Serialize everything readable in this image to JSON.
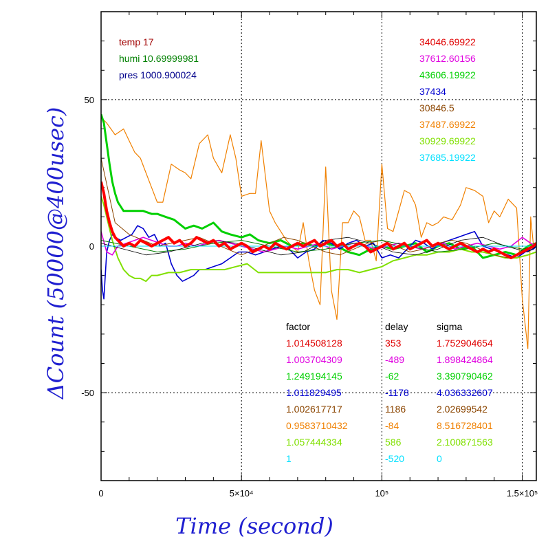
{
  "chart_data": {
    "type": "line",
    "xlabel": "Time (second)",
    "ylabel": "ΔCount (50000@400usec)",
    "xlim": [
      0,
      155000
    ],
    "ylim": [
      -80,
      80
    ],
    "x_ticks": [
      {
        "value": 0,
        "label": "0"
      },
      {
        "value": 50000,
        "label": "5×10⁴"
      },
      {
        "value": 100000,
        "label": "10⁵"
      },
      {
        "value": 150000,
        "label": "1.5×10⁵"
      }
    ],
    "y_ticks": [
      {
        "value": 50,
        "label": "50"
      },
      {
        "value": 0,
        "label": "0"
      },
      {
        "value": -50,
        "label": "-50"
      }
    ],
    "grid": "dotted",
    "env": [
      {
        "label": "temp 17",
        "color": "#a00000"
      },
      {
        "label": "humi 10.69999981",
        "color": "#008000"
      },
      {
        "label": "pres 1000.900024",
        "color": "#00008b"
      }
    ],
    "means": [
      {
        "value": "34046.69922",
        "color": "#e00000"
      },
      {
        "value": "37612.60156",
        "color": "#e000e0"
      },
      {
        "value": "43606.19922",
        "color": "#00d000"
      },
      {
        "value": "37434",
        "color": "#0000d0"
      },
      {
        "value": "30846.5",
        "color": "#8b4500"
      },
      {
        "value": "37487.69922",
        "color": "#f08000"
      },
      {
        "value": "30929.69922",
        "color": "#80e000"
      },
      {
        "value": "37685.19922",
        "color": "#00e0ff"
      }
    ],
    "table_headers": [
      "factor",
      "delay",
      "sigma"
    ],
    "table": [
      {
        "factor": "1.014508128",
        "delay": "353",
        "sigma": "1.752904654",
        "color": "#e00000"
      },
      {
        "factor": "1.003704309",
        "delay": "-489",
        "sigma": "1.898424864",
        "color": "#e000e0"
      },
      {
        "factor": "1.249194145",
        "delay": "-62",
        "sigma": "3.390790462",
        "color": "#00d000"
      },
      {
        "factor": "1.011829495",
        "delay": "-1178",
        "sigma": "4.036332607",
        "color": "#0000d0"
      },
      {
        "factor": "1.002617717",
        "delay": "1186",
        "sigma": "2.02699542",
        "color": "#8b4500"
      },
      {
        "factor": "0.9583710432",
        "delay": "-84",
        "sigma": "8.516728401",
        "color": "#f08000"
      },
      {
        "factor": "1.057444334",
        "delay": "586",
        "sigma": "2.100871563",
        "color": "#80e000"
      },
      {
        "factor": "1",
        "delay": "-520",
        "sigma": "0",
        "color": "#00e0ff"
      }
    ],
    "series": [
      {
        "color": "#f08000",
        "width": 1.2,
        "x": [
          0,
          2000,
          5000,
          8000,
          10000,
          12000,
          14000,
          16000,
          18000,
          20000,
          22000,
          25000,
          28000,
          30000,
          32000,
          35000,
          38000,
          40000,
          43000,
          46000,
          48000,
          50000,
          53000,
          55000,
          57000,
          60000,
          62000,
          64000,
          66000,
          68000,
          70000,
          72000,
          74000,
          76000,
          78000,
          80000,
          82000,
          84000,
          86000,
          88000,
          90000,
          92000,
          94000,
          96000,
          98000,
          100000,
          102000,
          104000,
          106000,
          108000,
          110000,
          112000,
          114000,
          116000,
          118000,
          120000,
          122000,
          125000,
          128000,
          130000,
          133000,
          136000,
          138000,
          140000,
          142000,
          145000,
          148000,
          150000,
          152000,
          153000,
          154000,
          155000
        ],
        "y": [
          44,
          42,
          38,
          40,
          36,
          32,
          30,
          25,
          20,
          15,
          15,
          28,
          26,
          25,
          23,
          35,
          38,
          30,
          25,
          38,
          30,
          17,
          18,
          18,
          36,
          12,
          8,
          5,
          2,
          0,
          -2,
          8,
          -5,
          -15,
          -20,
          27,
          -15,
          -25,
          8,
          8,
          12,
          10,
          2,
          2,
          -5,
          28,
          6,
          5,
          12,
          19,
          18,
          14,
          3,
          8,
          7,
          8,
          10,
          9,
          14,
          20,
          19,
          17,
          8,
          12,
          10,
          16,
          13,
          -18,
          -35,
          10,
          0,
          0
        ]
      },
      {
        "color": "#00d000",
        "width": 3,
        "x": [
          0,
          1000,
          2000,
          3000,
          4000,
          5000,
          6000,
          8000,
          10000,
          12000,
          15000,
          18000,
          20000,
          23000,
          26000,
          30000,
          33000,
          36000,
          40000,
          43000,
          46000,
          50000,
          53000,
          56000,
          60000,
          64000,
          68000,
          72000,
          76000,
          80000,
          84000,
          88000,
          92000,
          96000,
          100000,
          104000,
          108000,
          112000,
          116000,
          120000,
          124000,
          128000,
          132000,
          136000,
          140000,
          144000,
          148000,
          152000,
          155000
        ],
        "y": [
          45,
          42,
          35,
          28,
          22,
          18,
          15,
          12,
          12,
          12,
          12,
          11,
          11,
          10,
          9,
          6,
          7,
          6,
          8,
          5,
          4,
          3,
          4,
          2,
          1,
          2,
          0,
          1,
          0,
          1,
          0,
          -2,
          -3,
          -1,
          0,
          -1,
          0,
          1,
          -2,
          0,
          1,
          -1,
          0,
          -4,
          -3,
          -2,
          -3,
          0,
          1
        ]
      },
      {
        "color": "#0000d0",
        "width": 1.6,
        "x": [
          0,
          500,
          1000,
          1500,
          2000,
          3000,
          4000,
          5000,
          7000,
          9000,
          11000,
          13000,
          15000,
          17000,
          19000,
          21000,
          23000,
          25000,
          27000,
          29000,
          31000,
          33000,
          35000,
          37000,
          40000,
          43000,
          46000,
          49000,
          52000,
          55000,
          58000,
          61000,
          64000,
          67000,
          70000,
          73000,
          76000,
          79000,
          82000,
          85000,
          88000,
          91000,
          94000,
          97000,
          100000,
          103000,
          106000,
          109000,
          112000,
          115000,
          118000,
          121000,
          124000,
          127000,
          130000,
          133000,
          136000,
          139000,
          142000,
          145000,
          148000,
          151000,
          154000,
          155000
        ],
        "y": [
          -8,
          -15,
          -18,
          -10,
          -2,
          2,
          4,
          3,
          2,
          3,
          4,
          7,
          6,
          3,
          4,
          0,
          1,
          -6,
          -10,
          -12,
          -11,
          -10,
          -8,
          -8,
          -7,
          -6,
          -4,
          -2,
          -2,
          -3,
          -2,
          -1,
          0,
          -1,
          -4,
          -2,
          -1,
          2,
          1,
          -1,
          1,
          2,
          0,
          1,
          -4,
          -3,
          -4,
          -1,
          2,
          1,
          -1,
          1,
          2,
          3,
          4,
          5,
          0,
          -1,
          -2,
          -3,
          -4,
          -2,
          -1,
          0
        ]
      },
      {
        "color": "#80e000",
        "width": 2,
        "x": [
          0,
          1000,
          2000,
          4000,
          6000,
          8000,
          10000,
          12000,
          14000,
          16000,
          18000,
          20000,
          24000,
          28000,
          32000,
          36000,
          40000,
          44000,
          48000,
          52000,
          56000,
          60000,
          64000,
          68000,
          72000,
          76000,
          80000,
          84000,
          88000,
          92000,
          96000,
          100000,
          104000,
          108000,
          112000,
          116000,
          120000,
          124000,
          128000,
          132000,
          136000,
          140000,
          144000,
          148000,
          152000,
          155000
        ],
        "y": [
          17,
          14,
          10,
          2,
          -4,
          -8,
          -10,
          -11,
          -11,
          -12,
          -10,
          -10,
          -9,
          -9,
          -8,
          -8,
          -8,
          -8,
          -7,
          -6,
          -9,
          -9,
          -9,
          -9,
          -9,
          -9,
          -9,
          -8,
          -8,
          -9,
          -8,
          -7,
          -5,
          -4,
          -3,
          -3,
          -2,
          -2,
          -1,
          -2,
          -2,
          -3,
          -4,
          -4,
          -3,
          -2
        ]
      },
      {
        "color": "#e000e0",
        "width": 1.6,
        "x": [
          0,
          2000,
          4000,
          6000,
          9000,
          12000,
          15000,
          18000,
          21000,
          24000,
          27000,
          30000,
          34000,
          38000,
          42000,
          46000,
          50000,
          54000,
          58000,
          62000,
          66000,
          70000,
          74000,
          78000,
          82000,
          86000,
          90000,
          94000,
          98000,
          102000,
          106000,
          110000,
          114000,
          118000,
          122000,
          126000,
          130000,
          134000,
          138000,
          142000,
          146000,
          150000,
          153000,
          155000
        ],
        "y": [
          5,
          -2,
          -3,
          0,
          1,
          2,
          3,
          2,
          1,
          0,
          0,
          1,
          0,
          1,
          2,
          1,
          0,
          -1,
          -2,
          -1,
          0,
          -1,
          0,
          1,
          -1,
          0,
          1,
          0,
          -1,
          0,
          1,
          0,
          -1,
          0,
          1,
          -1,
          0,
          1,
          0,
          -1,
          0,
          3,
          1,
          0
        ]
      },
      {
        "color": "#8b4500",
        "width": 1,
        "x": [
          0,
          5000,
          10000,
          15000,
          20000,
          25000,
          30000,
          35000,
          40000,
          45000,
          50000,
          55000,
          60000,
          65000,
          70000,
          75000,
          80000,
          85000,
          90000,
          95000,
          100000,
          105000,
          110000,
          115000,
          120000,
          125000,
          130000,
          135000,
          140000,
          145000,
          150000,
          155000
        ],
        "y": [
          30,
          8,
          4,
          2,
          0,
          1,
          2,
          3,
          1,
          -1,
          -3,
          -1,
          1,
          3,
          2,
          0,
          -2,
          -3,
          -1,
          1,
          2,
          0,
          -2,
          -1,
          1,
          2,
          1,
          -1,
          -3,
          -4,
          -2,
          1
        ]
      },
      {
        "color": "#008000",
        "width": 1,
        "x": [
          0,
          10000,
          20000,
          30000,
          40000,
          50000,
          60000,
          70000,
          80000,
          90000,
          100000,
          110000,
          120000,
          130000,
          140000,
          150000,
          155000
        ],
        "y": [
          2,
          0,
          -2,
          -1,
          1,
          2,
          0,
          -2,
          -1,
          1,
          2,
          0,
          -2,
          -1,
          1,
          -1,
          0
        ]
      },
      {
        "color": "#000000",
        "width": 0.8,
        "x": [
          0,
          8000,
          16000,
          24000,
          32000,
          40000,
          48000,
          56000,
          64000,
          72000,
          80000,
          88000,
          96000,
          104000,
          112000,
          120000,
          128000,
          136000,
          144000,
          152000,
          155000
        ],
        "y": [
          1,
          -1,
          -3,
          -2,
          0,
          2,
          1,
          -1,
          -3,
          -2,
          2,
          3,
          1,
          -2,
          -3,
          -1,
          2,
          3,
          0,
          -2,
          0
        ]
      },
      {
        "color": "#00e0ff",
        "width": 1,
        "x": [
          0,
          155000
        ],
        "y": [
          0,
          0
        ]
      },
      {
        "color": "#ff0000",
        "width": 4,
        "x": [
          0,
          1000,
          2000,
          3000,
          4000,
          5000,
          6000,
          7000,
          8000,
          10000,
          12000,
          14000,
          16000,
          18000,
          20000,
          22000,
          24000,
          26000,
          28000,
          30000,
          32000,
          34000,
          36000,
          38000,
          40000,
          42000,
          44000,
          46000,
          48000,
          50000,
          52000,
          54000,
          56000,
          58000,
          60000,
          62000,
          64000,
          66000,
          68000,
          70000,
          72000,
          74000,
          76000,
          78000,
          80000,
          82000,
          84000,
          86000,
          88000,
          90000,
          92000,
          94000,
          96000,
          98000,
          100000,
          102000,
          104000,
          106000,
          108000,
          110000,
          112000,
          114000,
          116000,
          118000,
          120000,
          122000,
          124000,
          126000,
          128000,
          130000,
          132000,
          134000,
          136000,
          138000,
          140000,
          142000,
          144000,
          146000,
          148000,
          150000,
          152000,
          154000,
          155000
        ],
        "y": [
          22,
          18,
          12,
          8,
          5,
          3,
          2,
          1,
          0,
          1,
          0,
          2,
          1,
          0,
          1,
          2,
          3,
          1,
          2,
          0,
          1,
          3,
          2,
          1,
          2,
          0,
          1,
          -1,
          0,
          1,
          0,
          -2,
          -1,
          0,
          -1,
          1,
          0,
          -1,
          0,
          1,
          0,
          1,
          2,
          0,
          1,
          2,
          0,
          1,
          -1,
          0,
          1,
          0,
          -2,
          -1,
          0,
          1,
          -1,
          0,
          1,
          -1,
          0,
          1,
          2,
          0,
          1,
          0,
          -1,
          0,
          1,
          0,
          -1,
          -2,
          -1,
          -2,
          -1,
          -2,
          -3,
          -4,
          -3,
          -2,
          -1,
          0,
          1
        ]
      }
    ]
  }
}
